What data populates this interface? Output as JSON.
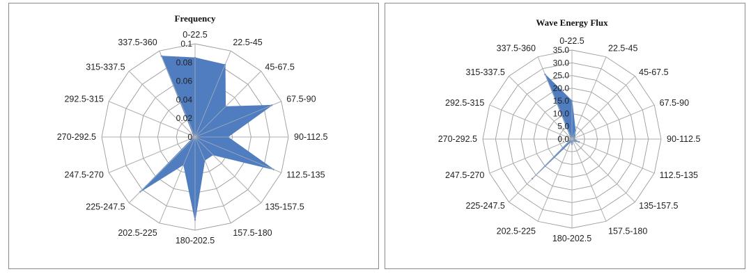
{
  "chart_data": [
    {
      "type": "radar",
      "title": "Frequency",
      "categories": [
        "0-22.5",
        "22.5-45",
        "45-67.5",
        "67.5-90",
        "90-112.5",
        "112.5-135",
        "135-157.5",
        "157.5-180",
        "180-202.5",
        "202.5-225",
        "225-247.5",
        "247.5-270",
        "270-292.5",
        "292.5-315",
        "315-337.5",
        "337.5-360"
      ],
      "ticks": [
        "0",
        "0.02",
        "0.04",
        "0.06",
        "0.08",
        "0.1"
      ],
      "range": [
        0,
        0.1
      ],
      "grid": true,
      "legend": "none",
      "series": [
        {
          "values": [
            0.085,
            0.084,
            0.046,
            0.089,
            0.035,
            0.091,
            0.027,
            0.027,
            0.089,
            0.032,
            0.083,
            0.002,
            0.002,
            0.002,
            0.002,
            0.094
          ],
          "color": "#4f7dc0"
        }
      ]
    },
    {
      "type": "radar",
      "title": "Wave Energy Flux",
      "categories": [
        "0-22.5",
        "22.5-45",
        "45-67.5",
        "67.5-90",
        "90-112.5",
        "112.5-135",
        "135-157.5",
        "157.5-180",
        "180-202.5",
        "202.5-225",
        "225-247.5",
        "247.5-270",
        "270-292.5",
        "292.5-315",
        "315-337.5",
        "337.5-360"
      ],
      "ticks": [
        "0.0",
        "5.0",
        "10.0",
        "15.0",
        "20.0",
        "25.0",
        "30.0",
        "35.0"
      ],
      "range": [
        0,
        35
      ],
      "grid": true,
      "legend": "none",
      "series": [
        {
          "values": [
            15.0,
            3.5,
            1.5,
            1.0,
            0.8,
            3.0,
            1.0,
            0.8,
            2.0,
            1.0,
            22.0,
            0.5,
            0.3,
            0.3,
            0.5,
            27.5
          ],
          "color": "#4f7dc0"
        }
      ]
    }
  ]
}
